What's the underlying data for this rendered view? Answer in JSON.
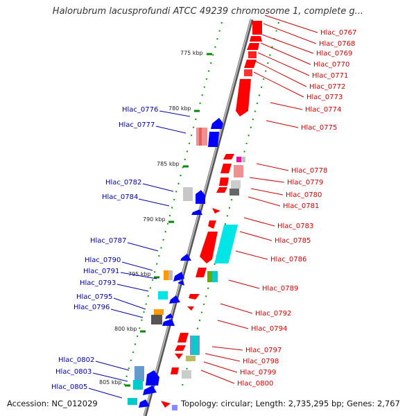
{
  "title": "Halorubrum lacusprofundi ATCC 49239 chromosome 1, complete g...",
  "accession_text": "Accession: NC_012029",
  "topology_text": "Topology: circular; Length: 2,735,295 bp; Genes: 2,767",
  "colors": {
    "forward_label": "#cc0000",
    "reverse_label": "#0000aa",
    "forward_gene": "#ff0000",
    "reverse_gene": "#0000ff",
    "tick": "#008800",
    "backbone": "#888888"
  },
  "kbp_ticks": [
    {
      "label": "775 kbp"
    },
    {
      "label": "780 kbp"
    },
    {
      "label": "785 kbp"
    },
    {
      "label": "790 kbp"
    },
    {
      "label": "795 kbp"
    },
    {
      "label": "800 kbp"
    },
    {
      "label": "805 kbp"
    }
  ],
  "forward_genes": [
    {
      "label": "Hlac_0767"
    },
    {
      "label": "Hlac_0768"
    },
    {
      "label": "Hlac_0769"
    },
    {
      "label": "Hlac_0770"
    },
    {
      "label": "Hlac_0771"
    },
    {
      "label": "Hlac_0772"
    },
    {
      "label": "Hlac_0773"
    },
    {
      "label": "Hlac_0774"
    },
    {
      "label": "Hlac_0775"
    },
    {
      "label": "Hlac_0778"
    },
    {
      "label": "Hlac_0779"
    },
    {
      "label": "Hlac_0780"
    },
    {
      "label": "Hlac_0781"
    },
    {
      "label": "Hlac_0783"
    },
    {
      "label": "Hlac_0785"
    },
    {
      "label": "Hlac_0786"
    },
    {
      "label": "Hlac_0789"
    },
    {
      "label": "Hlac_0792"
    },
    {
      "label": "Hlac_0794"
    },
    {
      "label": "Hlac_0797"
    },
    {
      "label": "Hlac_0798"
    },
    {
      "label": "Hlac_0799"
    },
    {
      "label": "Hlac_0800"
    }
  ],
  "reverse_genes": [
    {
      "label": "Hlac_0776"
    },
    {
      "label": "Hlac_0777"
    },
    {
      "label": "Hlac_0782"
    },
    {
      "label": "Hlac_0784"
    },
    {
      "label": "Hlac_0787"
    },
    {
      "label": "Hlac_0790"
    },
    {
      "label": "Hlac_0791"
    },
    {
      "label": "Hlac_0793"
    },
    {
      "label": "Hlac_0795"
    },
    {
      "label": "Hlac_0796"
    },
    {
      "label": "Hlac_0802"
    },
    {
      "label": "Hlac_0803"
    },
    {
      "label": "Hlac_0805"
    }
  ]
}
